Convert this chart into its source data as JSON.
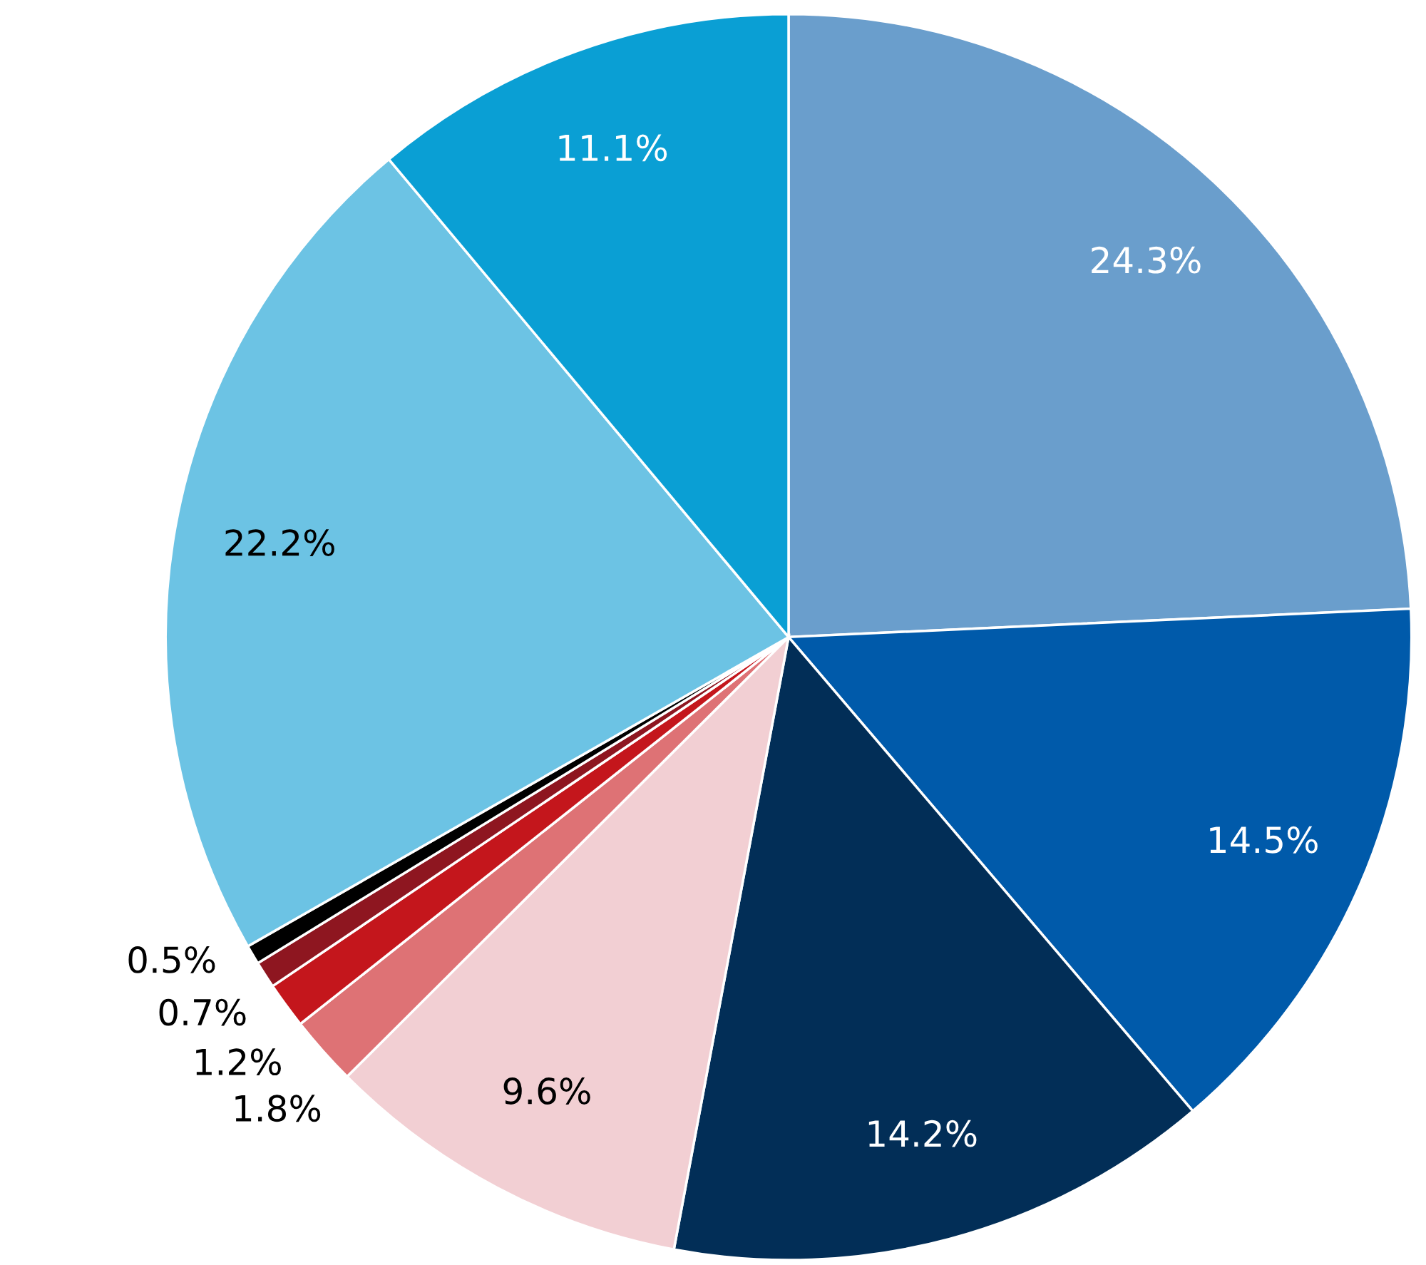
{
  "chart_data": {
    "type": "pie",
    "categories": [
      null,
      null,
      null,
      null,
      null,
      null,
      null,
      null,
      null,
      null
    ],
    "values": [
      24.3,
      14.5,
      14.2,
      9.6,
      1.8,
      1.2,
      0.7,
      0.5,
      22.2,
      11.1
    ],
    "colors": [
      "#6a9ecc",
      "#005aaa",
      "#022e57",
      "#f2cfd3",
      "#de7275",
      "#c4161c",
      "#8e1620",
      "#000000",
      "#6cc3e4",
      "#0a9fd4"
    ],
    "value_labels": [
      "24.3%",
      "14.5%",
      "14.2%",
      "9.6%",
      "1.8%",
      "1.2%",
      "0.7%",
      "0.5%",
      "22.2%",
      "11.1%"
    ]
  }
}
